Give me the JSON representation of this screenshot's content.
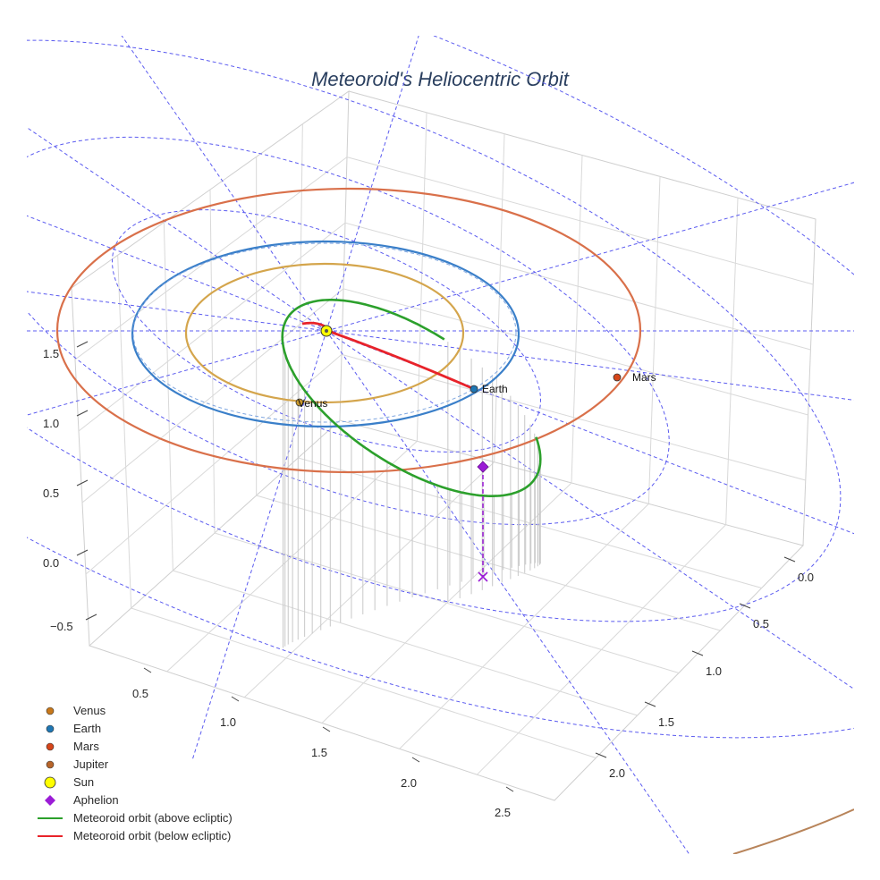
{
  "chart_data": {
    "type": "scatter3d",
    "title": "Meteoroid's Heliocentric Orbit",
    "axes": {
      "x": {
        "ticks": [
          "0.5",
          "1.0",
          "1.5",
          "2.0",
          "2.5"
        ]
      },
      "y": {
        "ticks": [
          "0.0",
          "0.5",
          "1.0",
          "1.5",
          "2.0"
        ]
      },
      "z": {
        "ticks": [
          "1.5",
          "1.0",
          "0.5",
          "0.0",
          "−0.5"
        ]
      }
    },
    "planets": [
      {
        "name": "Venus",
        "orbit_radius_au": 0.72,
        "color": "#c8982d",
        "orbit_color": "#d4a54c",
        "label": "Venus"
      },
      {
        "name": "Earth",
        "orbit_radius_au": 1.0,
        "color": "#1f77b4",
        "orbit_color": "#3a7fc9",
        "label": "Earth"
      },
      {
        "name": "Mars",
        "orbit_radius_au": 1.52,
        "color": "#d6461a",
        "orbit_color": "#d9704a",
        "label": "Mars"
      },
      {
        "name": "Jupiter",
        "orbit_radius_au": 5.2,
        "color": "#b8845a",
        "orbit_color": "#b8845a"
      }
    ],
    "sun": {
      "name": "Sun",
      "color": "#ffff00"
    },
    "meteoroid_orbit": {
      "perihelion_au": 0.3,
      "aphelion_au": 2.1,
      "above_color": "#2ca02c",
      "below_color": "#e8232a"
    },
    "aphelion_marker": {
      "name": "Aphelion",
      "color": "#9b1cd6"
    },
    "ecliptic_grid_radii_au": [
      1.25,
      2.0,
      3.0
    ],
    "legend": [
      {
        "label": "Venus",
        "symbol": "dot",
        "color": "#c8781a"
      },
      {
        "label": "Earth",
        "symbol": "dot",
        "color": "#1f77b4"
      },
      {
        "label": "Mars",
        "symbol": "dot",
        "color": "#d6461a"
      },
      {
        "label": "Jupiter",
        "symbol": "dot",
        "color": "#b8652a"
      },
      {
        "label": "Sun",
        "symbol": "big-dot",
        "color": "#ffff00"
      },
      {
        "label": "Aphelion",
        "symbol": "diamond",
        "color": "#9b1cd6"
      },
      {
        "label": "Meteoroid orbit (above ecliptic)",
        "symbol": "line",
        "color": "#2ca02c"
      },
      {
        "label": "Meteoroid orbit (below ecliptic)",
        "symbol": "line",
        "color": "#e8232a"
      }
    ]
  }
}
